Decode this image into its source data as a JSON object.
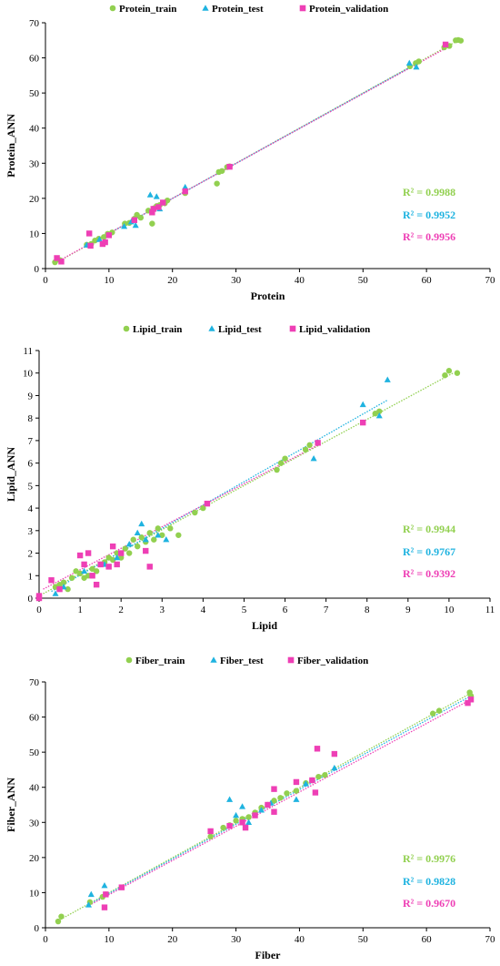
{
  "colors": {
    "train": "#92d050",
    "test": "#1fb3e0",
    "validation": "#ee3fb5",
    "axis": "#000000"
  },
  "chart_data": [
    {
      "type": "scatter",
      "xlabel": "Protein",
      "ylabel": "Protein_ANN",
      "xlim": [
        0,
        70
      ],
      "ylim": [
        0,
        70
      ],
      "xticks": [
        0,
        10,
        20,
        30,
        40,
        50,
        60,
        70
      ],
      "yticks": [
        0,
        10,
        20,
        30,
        40,
        50,
        60,
        70
      ],
      "grid": false,
      "legend_position": "top",
      "r2_labels": [
        "R² = 0.9988",
        "R² = 0.9952",
        "R² = 0.9956"
      ],
      "series": [
        {
          "name": "Protein_train",
          "marker": "circle",
          "trend": [
            [
              1.5,
              1.5
            ],
            [
              65,
              65
            ]
          ],
          "points": [
            [
              1.5,
              1.8
            ],
            [
              2.3,
              2.4
            ],
            [
              6.5,
              6.8
            ],
            [
              7.2,
              7.0
            ],
            [
              7.8,
              8.0
            ],
            [
              8.4,
              8.5
            ],
            [
              9.2,
              9.0
            ],
            [
              9.8,
              9.9
            ],
            [
              10.5,
              10.3
            ],
            [
              12.5,
              12.8
            ],
            [
              13.2,
              13.0
            ],
            [
              14.0,
              14.2
            ],
            [
              14.4,
              15.3
            ],
            [
              15.0,
              14.5
            ],
            [
              16.2,
              16.5
            ],
            [
              16.8,
              12.8
            ],
            [
              17.1,
              17.2
            ],
            [
              17.5,
              17.8
            ],
            [
              18.0,
              18.1
            ],
            [
              18.8,
              18.6
            ],
            [
              19.2,
              19.4
            ],
            [
              22.0,
              21.5
            ],
            [
              27.0,
              24.2
            ],
            [
              27.3,
              27.5
            ],
            [
              27.8,
              27.8
            ],
            [
              28.6,
              28.9
            ],
            [
              29.0,
              29.1
            ],
            [
              57.4,
              57.6
            ],
            [
              58.3,
              58.5
            ],
            [
              58.8,
              59.0
            ],
            [
              62.8,
              63.0
            ],
            [
              63.6,
              63.4
            ],
            [
              64.6,
              65.0
            ],
            [
              65.0,
              65.1
            ],
            [
              65.4,
              64.9
            ]
          ]
        },
        {
          "name": "Protein_test",
          "marker": "triangle",
          "trend": [
            [
              6.5,
              6.5
            ],
            [
              59,
              58.9
            ]
          ],
          "points": [
            [
              6.5,
              6.7
            ],
            [
              8.5,
              8.3
            ],
            [
              12.4,
              12.0
            ],
            [
              13.5,
              13.3
            ],
            [
              14.2,
              12.3
            ],
            [
              16.5,
              21.0
            ],
            [
              17.5,
              20.5
            ],
            [
              18.0,
              17.0
            ],
            [
              22.0,
              23.2
            ],
            [
              57.3,
              58.5
            ],
            [
              58.4,
              57.4
            ]
          ]
        },
        {
          "name": "Protein_validation",
          "marker": "square",
          "trend": [
            [
              1.5,
              1.6
            ],
            [
              63.5,
              63.2
            ]
          ],
          "points": [
            [
              1.8,
              3.0
            ],
            [
              2.5,
              2.0
            ],
            [
              6.9,
              10.0
            ],
            [
              7.1,
              6.5
            ],
            [
              9.0,
              7.0
            ],
            [
              9.4,
              7.5
            ],
            [
              10.0,
              9.5
            ],
            [
              14.0,
              13.8
            ],
            [
              16.8,
              16.0
            ],
            [
              17.0,
              17.0
            ],
            [
              17.8,
              17.5
            ],
            [
              18.5,
              18.8
            ],
            [
              22.0,
              22.0
            ],
            [
              29.0,
              29.0
            ],
            [
              63.0,
              63.8
            ]
          ]
        }
      ]
    },
    {
      "type": "scatter",
      "xlabel": "Lipid",
      "ylabel": "Lipid_ANN",
      "xlim": [
        0,
        11
      ],
      "ylim": [
        0,
        11
      ],
      "xticks": [
        0,
        1,
        2,
        3,
        4,
        5,
        6,
        7,
        8,
        9,
        10,
        11
      ],
      "yticks": [
        0,
        1,
        2,
        3,
        4,
        5,
        6,
        7,
        8,
        9,
        10,
        11
      ],
      "grid": false,
      "legend_position": "top",
      "r2_labels": [
        "R² = 0.9944",
        "R² = 0.9767",
        "R² = 0.9392"
      ],
      "series": [
        {
          "name": "Lipid_train",
          "marker": "circle",
          "trend": [
            [
              0.1,
              0.2
            ],
            [
              10.1,
              10.0
            ]
          ],
          "points": [
            [
              0.4,
              0.5
            ],
            [
              0.5,
              0.6
            ],
            [
              0.6,
              0.7
            ],
            [
              0.7,
              0.4
            ],
            [
              0.8,
              0.9
            ],
            [
              0.9,
              1.2
            ],
            [
              1.0,
              1.1
            ],
            [
              1.1,
              0.9
            ],
            [
              1.2,
              1.0
            ],
            [
              1.3,
              1.3
            ],
            [
              1.4,
              1.2
            ],
            [
              1.5,
              1.5
            ],
            [
              1.6,
              1.6
            ],
            [
              1.7,
              1.8
            ],
            [
              1.8,
              1.7
            ],
            [
              1.9,
              2.0
            ],
            [
              2.0,
              1.8
            ],
            [
              2.1,
              2.2
            ],
            [
              2.2,
              2.0
            ],
            [
              2.3,
              2.6
            ],
            [
              2.4,
              2.3
            ],
            [
              2.5,
              2.7
            ],
            [
              2.6,
              2.5
            ],
            [
              2.7,
              2.9
            ],
            [
              2.8,
              2.6
            ],
            [
              2.9,
              3.1
            ],
            [
              3.0,
              2.8
            ],
            [
              3.2,
              3.1
            ],
            [
              3.4,
              2.8
            ],
            [
              3.8,
              3.8
            ],
            [
              4.0,
              4.0
            ],
            [
              5.8,
              5.7
            ],
            [
              5.9,
              6.0
            ],
            [
              6.0,
              6.2
            ],
            [
              6.5,
              6.6
            ],
            [
              6.6,
              6.8
            ],
            [
              8.2,
              8.2
            ],
            [
              8.3,
              8.3
            ],
            [
              9.9,
              9.9
            ],
            [
              10.0,
              10.1
            ],
            [
              10.2,
              10.0
            ]
          ]
        },
        {
          "name": "Lipid_test",
          "marker": "triangle",
          "trend": [
            [
              0.3,
              0.3
            ],
            [
              8.5,
              8.8
            ]
          ],
          "points": [
            [
              0.4,
              0.2
            ],
            [
              0.6,
              0.5
            ],
            [
              1.1,
              1.2
            ],
            [
              1.6,
              1.5
            ],
            [
              1.9,
              1.8
            ],
            [
              2.2,
              2.4
            ],
            [
              2.4,
              2.9
            ],
            [
              2.5,
              3.3
            ],
            [
              2.6,
              2.6
            ],
            [
              2.9,
              2.8
            ],
            [
              3.1,
              2.6
            ],
            [
              6.7,
              6.2
            ],
            [
              7.9,
              8.6
            ],
            [
              8.3,
              8.1
            ],
            [
              8.5,
              9.7
            ]
          ]
        },
        {
          "name": "Lipid_validation",
          "marker": "square",
          "trend": [
            [
              0.1,
              0.4
            ],
            [
              6.8,
              6.8
            ]
          ],
          "points": [
            [
              0.0,
              0.0
            ],
            [
              0.0,
              0.1
            ],
            [
              0.3,
              0.8
            ],
            [
              0.5,
              0.4
            ],
            [
              1.0,
              1.9
            ],
            [
              1.1,
              1.5
            ],
            [
              1.2,
              2.0
            ],
            [
              1.3,
              1.0
            ],
            [
              1.4,
              0.6
            ],
            [
              1.5,
              1.5
            ],
            [
              1.7,
              1.4
            ],
            [
              1.8,
              2.3
            ],
            [
              1.9,
              1.5
            ],
            [
              2.0,
              2.0
            ],
            [
              2.6,
              2.1
            ],
            [
              2.7,
              1.4
            ],
            [
              4.1,
              4.2
            ],
            [
              7.9,
              7.8
            ],
            [
              6.8,
              6.9
            ]
          ]
        }
      ]
    },
    {
      "type": "scatter",
      "xlabel": "Fiber",
      "ylabel": "Fiber_ANN",
      "xlim": [
        0,
        70
      ],
      "ylim": [
        0,
        70
      ],
      "xticks": [
        0,
        10,
        20,
        30,
        40,
        50,
        60,
        70
      ],
      "yticks": [
        0,
        10,
        20,
        30,
        40,
        50,
        60,
        70
      ],
      "grid": false,
      "legend_position": "top",
      "r2_labels": [
        "R² = 0.9976",
        "R² = 0.9828",
        "R² = 0.9670"
      ],
      "series": [
        {
          "name": "Fiber_train",
          "marker": "circle",
          "trend": [
            [
              2,
              2
            ],
            [
              67,
              66.8
            ]
          ],
          "points": [
            [
              2.0,
              1.8
            ],
            [
              2.5,
              3.2
            ],
            [
              7.0,
              7.3
            ],
            [
              9.0,
              8.8
            ],
            [
              9.5,
              9.5
            ],
            [
              26.0,
              26.0
            ],
            [
              28.0,
              28.5
            ],
            [
              29.0,
              29.2
            ],
            [
              30.0,
              30.5
            ],
            [
              31.0,
              31.0
            ],
            [
              32.0,
              31.5
            ],
            [
              33.0,
              32.8
            ],
            [
              34.0,
              34.2
            ],
            [
              35.0,
              35.0
            ],
            [
              36.0,
              36.2
            ],
            [
              37.0,
              37.0
            ],
            [
              38.0,
              38.3
            ],
            [
              39.5,
              39.0
            ],
            [
              41.0,
              41.2
            ],
            [
              42.0,
              42.0
            ],
            [
              43.0,
              43.0
            ],
            [
              44.0,
              43.5
            ],
            [
              61.0,
              61.0
            ],
            [
              62.0,
              61.8
            ],
            [
              66.8,
              67.0
            ],
            [
              67.0,
              66.0
            ]
          ]
        },
        {
          "name": "Fiber_test",
          "marker": "triangle",
          "trend": [
            [
              6.5,
              6.3
            ],
            [
              67,
              66
            ]
          ],
          "points": [
            [
              6.8,
              6.5
            ],
            [
              7.2,
              9.5
            ],
            [
              9.3,
              12.0
            ],
            [
              29.0,
              36.5
            ],
            [
              30.0,
              32.0
            ],
            [
              31.0,
              34.5
            ],
            [
              32.0,
              30.0
            ],
            [
              34.0,
              33.5
            ],
            [
              35.5,
              35.5
            ],
            [
              39.5,
              36.5
            ],
            [
              41.0,
              41.0
            ],
            [
              45.5,
              45.5
            ]
          ]
        },
        {
          "name": "Fiber_validation",
          "marker": "square",
          "trend": [
            [
              6.5,
              6.0
            ],
            [
              67,
              65
            ]
          ],
          "points": [
            [
              9.3,
              5.8
            ],
            [
              9.5,
              9.5
            ],
            [
              12.0,
              11.5
            ],
            [
              26.0,
              27.5
            ],
            [
              29.0,
              29.0
            ],
            [
              31.0,
              30.0
            ],
            [
              31.5,
              28.5
            ],
            [
              33.0,
              32.0
            ],
            [
              35.0,
              35.0
            ],
            [
              36.0,
              39.5
            ],
            [
              36.0,
              33.0
            ],
            [
              39.5,
              41.5
            ],
            [
              42.0,
              42.0
            ],
            [
              42.5,
              38.5
            ],
            [
              42.8,
              51.0
            ],
            [
              45.5,
              49.5
            ],
            [
              66.5,
              64.0
            ],
            [
              67.0,
              65.0
            ]
          ]
        }
      ]
    }
  ]
}
